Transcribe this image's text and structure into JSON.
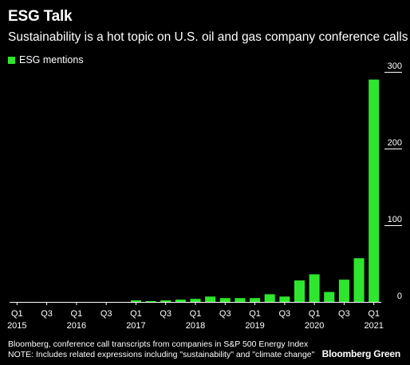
{
  "title": "ESG Talk",
  "subtitle": "Sustainability is a hot topic on U.S. oil and gas company conference calls",
  "source": "Bloomberg, conference call transcripts from companies in S&P 500 Energy Index",
  "note": "NOTE: Includes related expressions including \"sustainability\" and \"climate change\"",
  "brand": "Bloomberg Green",
  "colors": {
    "background": "#000000",
    "bar": "#2ee62e",
    "text": "#ffffff",
    "axis": "#ffffff"
  },
  "chart_data": {
    "type": "bar",
    "title": "ESG Talk",
    "subtitle": "Sustainability is a hot topic on U.S. oil and gas company conference calls",
    "series": [
      {
        "name": "ESG mentions",
        "values": [
          0,
          0,
          0,
          0,
          0,
          0,
          0,
          0,
          2,
          1,
          2,
          3,
          4,
          7,
          5,
          5,
          5,
          10,
          7,
          28,
          36,
          13,
          29,
          57,
          290
        ]
      }
    ],
    "categories": [
      "Q1 2015",
      "Q2 2015",
      "Q3 2015",
      "Q4 2015",
      "Q1 2016",
      "Q2 2016",
      "Q3 2016",
      "Q4 2016",
      "Q1 2017",
      "Q2 2017",
      "Q3 2017",
      "Q4 2017",
      "Q1 2018",
      "Q2 2018",
      "Q3 2018",
      "Q4 2018",
      "Q1 2019",
      "Q2 2019",
      "Q3 2019",
      "Q4 2019",
      "Q1 2020",
      "Q2 2020",
      "Q3 2020",
      "Q4 2020",
      "Q1 2021"
    ],
    "x_tick_labels": [
      {
        "index": 0,
        "quarter": "Q1",
        "year": "2015"
      },
      {
        "index": 2,
        "quarter": "Q3",
        "year": ""
      },
      {
        "index": 4,
        "quarter": "Q1",
        "year": "2016"
      },
      {
        "index": 6,
        "quarter": "Q3",
        "year": ""
      },
      {
        "index": 8,
        "quarter": "Q1",
        "year": "2017"
      },
      {
        "index": 10,
        "quarter": "Q3",
        "year": ""
      },
      {
        "index": 12,
        "quarter": "Q1",
        "year": "2018"
      },
      {
        "index": 14,
        "quarter": "Q3",
        "year": ""
      },
      {
        "index": 16,
        "quarter": "Q1",
        "year": "2019"
      },
      {
        "index": 18,
        "quarter": "Q3",
        "year": ""
      },
      {
        "index": 20,
        "quarter": "Q1",
        "year": "2020"
      },
      {
        "index": 22,
        "quarter": "Q3",
        "year": ""
      },
      {
        "index": 24,
        "quarter": "Q1",
        "year": "2021"
      }
    ],
    "y_ticks": [
      0,
      100,
      200,
      300
    ],
    "ylim": [
      0,
      300
    ],
    "y_axis_position": "right",
    "legend_position": "top-left",
    "grid": false
  }
}
